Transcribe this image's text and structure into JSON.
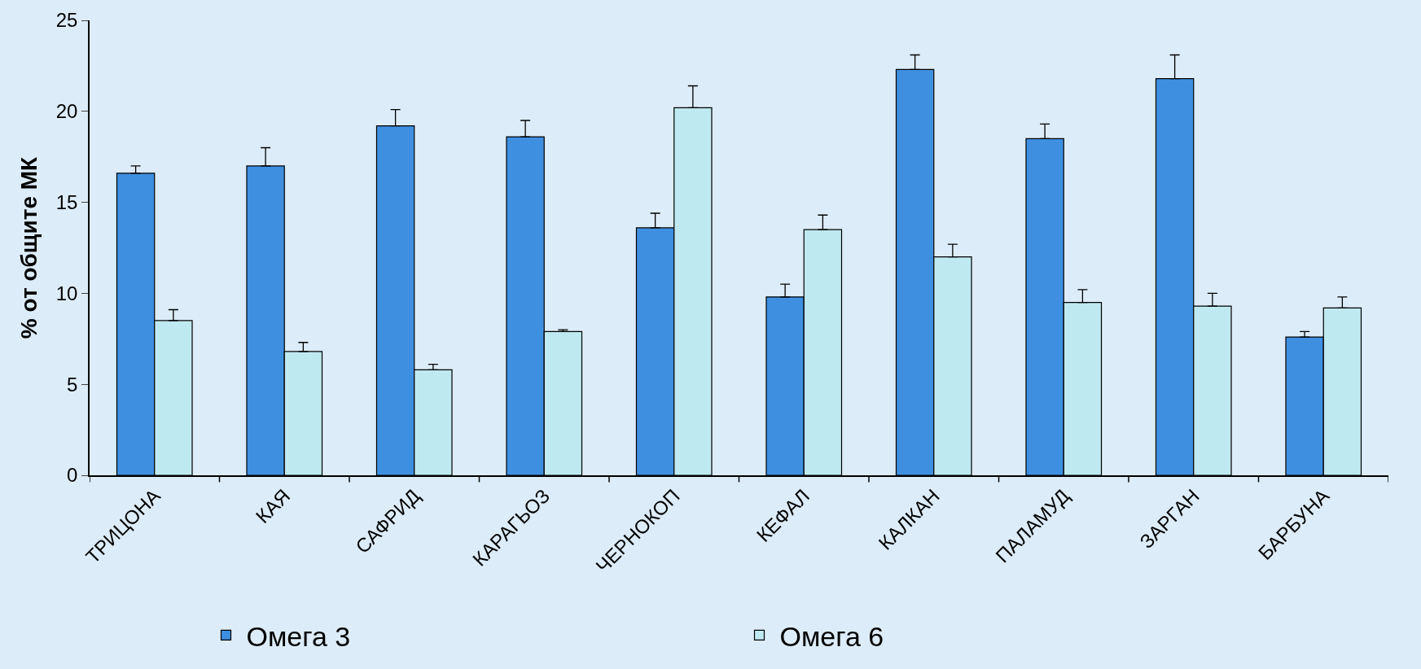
{
  "chart_data": {
    "type": "bar",
    "ylabel": "% от общите МК",
    "categories": [
      "ТРИЦОНА",
      "КАЯ",
      "САФРИД",
      "КАРАГЬОЗ",
      "ЧЕРНОКОП",
      "КЕФАЛ",
      "КАЛКАН",
      "ПАЛАМУД",
      "ЗАРГАН",
      "БАРБУНА"
    ],
    "series": [
      {
        "name": "Омега 3",
        "color": "#3f8fe0",
        "values": [
          16.6,
          17.0,
          19.2,
          18.6,
          13.6,
          9.8,
          22.3,
          18.5,
          21.8,
          7.6
        ],
        "errors": [
          [
            16.6,
            17.0
          ],
          [
            17.0,
            18.0
          ],
          [
            19.2,
            20.1
          ],
          [
            18.6,
            19.5
          ],
          [
            13.6,
            14.4
          ],
          [
            9.8,
            10.5
          ],
          [
            22.3,
            23.1
          ],
          [
            18.5,
            19.3
          ],
          [
            21.8,
            23.1
          ],
          [
            7.6,
            7.9
          ]
        ]
      },
      {
        "name": "Омега 6",
        "color": "#bfe9f0",
        "values": [
          8.5,
          6.8,
          5.8,
          7.9,
          20.2,
          13.5,
          12.0,
          9.5,
          9.3,
          9.2
        ],
        "errors": [
          [
            8.5,
            9.1
          ],
          [
            6.8,
            7.3
          ],
          [
            5.8,
            6.1
          ],
          [
            7.9,
            8.0
          ],
          [
            20.2,
            21.4
          ],
          [
            13.5,
            14.3
          ],
          [
            12.0,
            12.7
          ],
          [
            9.5,
            10.2
          ],
          [
            9.3,
            10.0
          ],
          [
            9.2,
            9.8
          ]
        ]
      }
    ],
    "ylim": [
      0,
      25
    ],
    "yticks": [
      0,
      5,
      10,
      15,
      20,
      25
    ],
    "grid": false,
    "legend": "bottom"
  }
}
